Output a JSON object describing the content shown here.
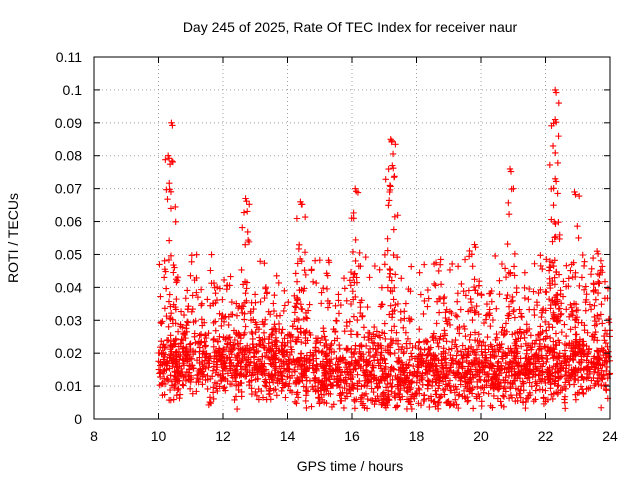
{
  "chart_data": {
    "type": "scatter",
    "title": "Day 245 of 2025, Rate Of TEC Index for receiver naur",
    "xlabel": "GPS time / hours",
    "ylabel": "ROTI / TECUs",
    "xlim": [
      8,
      24
    ],
    "ylim": [
      0,
      0.11
    ],
    "xticks": [
      "8",
      "10",
      "12",
      "14",
      "16",
      "18",
      "20",
      "22",
      "24"
    ],
    "yticks": [
      "0",
      "0.01",
      "0.02",
      "0.03",
      "0.04",
      "0.05",
      "0.06",
      "0.07",
      "0.08",
      "0.09",
      "0.1",
      "0.11"
    ],
    "grid": true,
    "marker": "+",
    "series_color": "#ff0000",
    "x_range_of_points": [
      10.0,
      24.0
    ],
    "typical_band": [
      0.005,
      0.03
    ],
    "peaks": [
      {
        "x": 10.4,
        "y": 0.09
      },
      {
        "x": 10.3,
        "y": 0.08
      },
      {
        "x": 12.7,
        "y": 0.067
      },
      {
        "x": 14.4,
        "y": 0.066
      },
      {
        "x": 16.1,
        "y": 0.07
      },
      {
        "x": 17.2,
        "y": 0.085
      },
      {
        "x": 17.25,
        "y": 0.077
      },
      {
        "x": 19.8,
        "y": 0.053
      },
      {
        "x": 20.9,
        "y": 0.076
      },
      {
        "x": 22.3,
        "y": 0.1
      },
      {
        "x": 22.3,
        "y": 0.091
      },
      {
        "x": 22.3,
        "y": 0.073
      },
      {
        "x": 22.9,
        "y": 0.069
      },
      {
        "x": 23.6,
        "y": 0.051
      }
    ]
  }
}
